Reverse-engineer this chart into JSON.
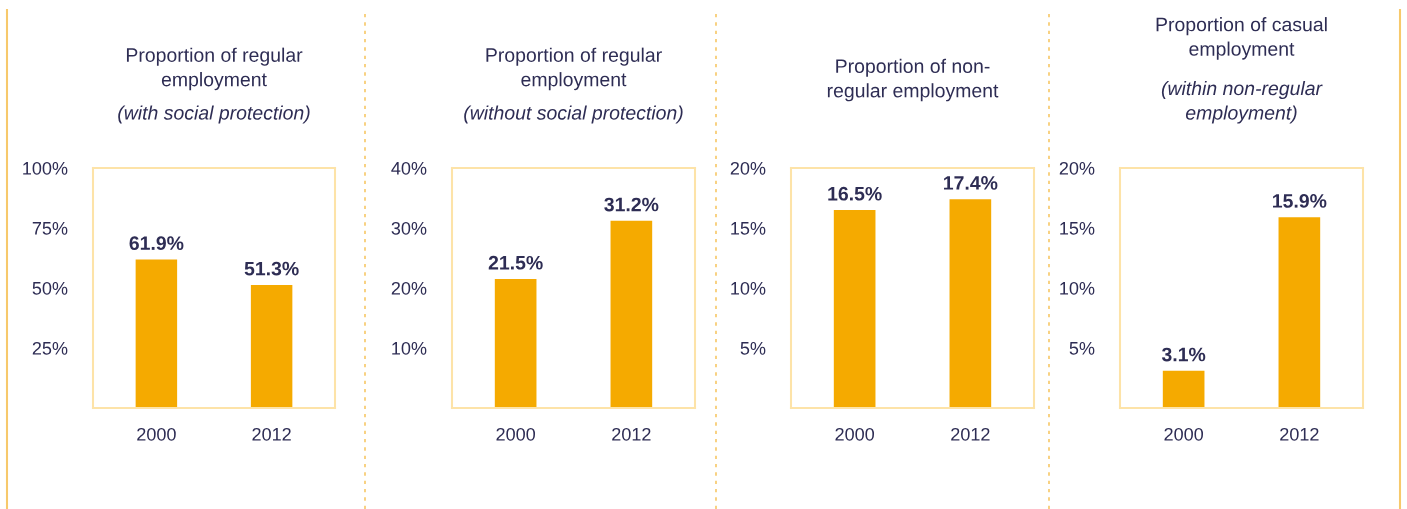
{
  "chart_data": [
    {
      "type": "bar",
      "title": "Proportion of regular\nemployment",
      "subtitle": "(with social protection)",
      "categories": [
        "2000",
        "2012"
      ],
      "values": [
        61.9,
        51.3
      ],
      "value_labels": [
        "61.9%",
        "51.3%"
      ],
      "color": "#f5aa00",
      "ylim": [
        0,
        100
      ],
      "yticks": [
        {
          "value": 25,
          "label": "25%"
        },
        {
          "value": 50,
          "label": "50%"
        },
        {
          "value": 75,
          "label": "75%"
        },
        {
          "value": 100,
          "label": "100%"
        }
      ],
      "grid": false
    },
    {
      "type": "bar",
      "title": "Proportion of regular\nemployment",
      "subtitle": "(without social protection)",
      "categories": [
        "2000",
        "2012"
      ],
      "values": [
        21.5,
        31.2
      ],
      "value_labels": [
        "21.5%",
        "31.2%"
      ],
      "color": "#f5aa00",
      "ylim": [
        0,
        40
      ],
      "yticks": [
        {
          "value": 10,
          "label": "10%"
        },
        {
          "value": 20,
          "label": "20%"
        },
        {
          "value": 30,
          "label": "30%"
        },
        {
          "value": 40,
          "label": "40%"
        }
      ],
      "grid": false
    },
    {
      "type": "bar",
      "title": "Proportion of non-\nregular employment",
      "categories": [
        "2000",
        "2012"
      ],
      "values": [
        16.5,
        17.4
      ],
      "value_labels": [
        "16.5%",
        "17.4%"
      ],
      "color": "#f5aa00",
      "ylim": [
        0,
        20
      ],
      "yticks": [
        {
          "value": 5,
          "label": "5%"
        },
        {
          "value": 10,
          "label": "10%"
        },
        {
          "value": 15,
          "label": "15%"
        },
        {
          "value": 20,
          "label": "20%"
        }
      ],
      "grid": false
    },
    {
      "type": "bar",
      "title": "Proportion of casual\nemployment",
      "subtitle": "(within non-regular\nemployment)",
      "categories": [
        "2000",
        "2012"
      ],
      "values": [
        3.1,
        15.9
      ],
      "value_labels": [
        "3.1%",
        "15.9%"
      ],
      "color": "#f5aa00",
      "ylim": [
        0,
        20
      ],
      "yticks": [
        {
          "value": 5,
          "label": "5%"
        },
        {
          "value": 10,
          "label": "10%"
        },
        {
          "value": 15,
          "label": "15%"
        },
        {
          "value": 20,
          "label": "20%"
        }
      ],
      "grid": false
    }
  ]
}
